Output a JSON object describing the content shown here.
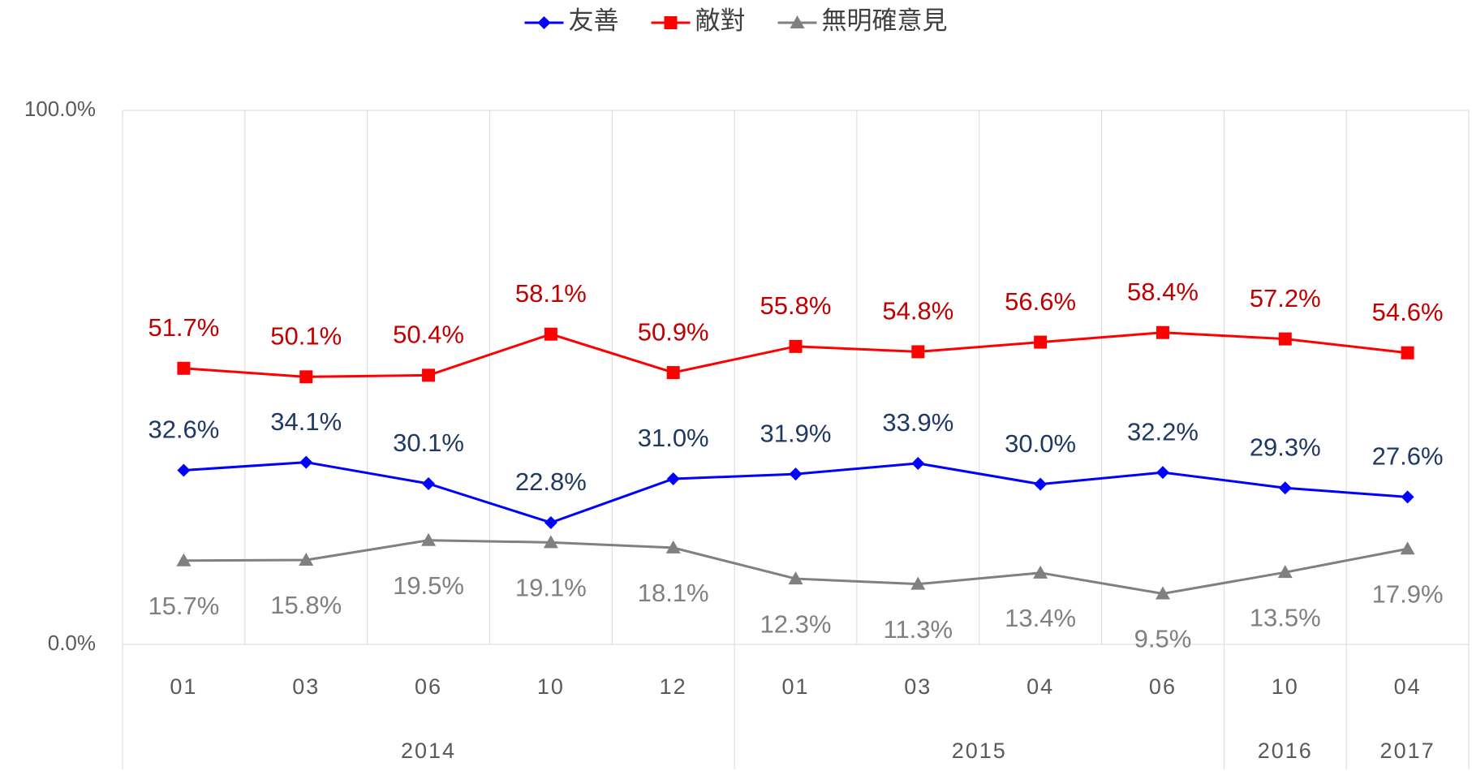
{
  "chart_data": {
    "type": "line",
    "categories": [
      "01",
      "03",
      "06",
      "10",
      "12",
      "01",
      "03",
      "04",
      "06",
      "10",
      "04"
    ],
    "groups": [
      {
        "label": "2014",
        "span": 5
      },
      {
        "label": "2015",
        "span": 4
      },
      {
        "label": "2016",
        "span": 1
      },
      {
        "label": "2017",
        "span": 1
      }
    ],
    "series": [
      {
        "name": "友善",
        "color": "#0000ff",
        "label_color": "#1f3864",
        "marker": "diamond",
        "values": [
          32.6,
          34.1,
          30.1,
          22.8,
          31.0,
          31.9,
          33.9,
          30.0,
          32.2,
          29.3,
          27.6
        ],
        "value_labels": [
          "32.6%",
          "34.1%",
          "30.1%",
          "22.8%",
          "31.0%",
          "31.9%",
          "33.9%",
          "30.0%",
          "32.2%",
          "29.3%",
          "27.6%"
        ]
      },
      {
        "name": "敵對",
        "color": "#ff0000",
        "label_color": "#c00000",
        "marker": "square",
        "values": [
          51.7,
          50.1,
          50.4,
          58.1,
          50.9,
          55.8,
          54.8,
          56.6,
          58.4,
          57.2,
          54.6
        ],
        "value_labels": [
          "51.7%",
          "50.1%",
          "50.4%",
          "58.1%",
          "50.9%",
          "55.8%",
          "54.8%",
          "56.6%",
          "58.4%",
          "57.2%",
          "54.6%"
        ]
      },
      {
        "name": "無明確意見",
        "color": "#808080",
        "label_color": "#808080",
        "marker": "triangle",
        "values": [
          15.7,
          15.8,
          19.5,
          19.1,
          18.1,
          12.3,
          11.3,
          13.4,
          9.5,
          13.5,
          17.9
        ],
        "value_labels": [
          "15.7%",
          "15.8%",
          "19.5%",
          "19.1%",
          "18.1%",
          "12.3%",
          "11.3%",
          "13.4%",
          "9.5%",
          "13.5%",
          "17.9%"
        ]
      }
    ],
    "ylim": [
      0,
      100
    ],
    "yticks": [
      {
        "value": 0,
        "label": "0.0%"
      },
      {
        "value": 100,
        "label": "100.0%"
      }
    ],
    "grid": true,
    "legend": "top"
  }
}
